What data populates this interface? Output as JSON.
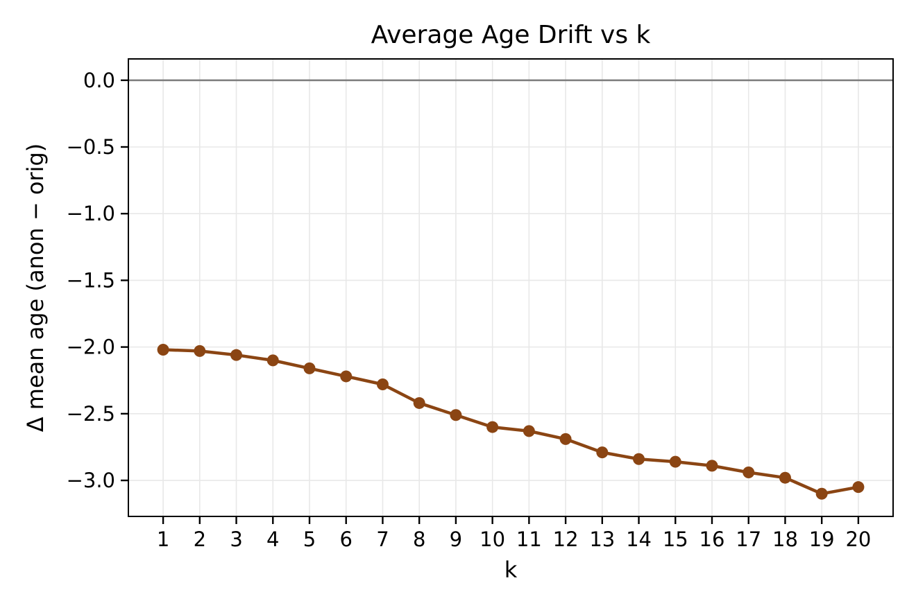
{
  "chart_data": {
    "type": "line",
    "title": "Average Age Drift vs k",
    "xlabel": "k",
    "ylabel": "Δ mean age (anon − orig)",
    "x": [
      1,
      2,
      3,
      4,
      5,
      6,
      7,
      8,
      9,
      10,
      11,
      12,
      13,
      14,
      15,
      16,
      17,
      18,
      19,
      20
    ],
    "y": [
      -2.02,
      -2.03,
      -2.06,
      -2.1,
      -2.16,
      -2.22,
      -2.28,
      -2.42,
      -2.51,
      -2.6,
      -2.63,
      -2.69,
      -2.79,
      -2.84,
      -2.86,
      -2.89,
      -2.94,
      -2.98,
      -3.1,
      -3.05
    ],
    "xticks": [
      1,
      2,
      3,
      4,
      5,
      6,
      7,
      8,
      9,
      10,
      11,
      12,
      13,
      14,
      15,
      16,
      17,
      18,
      19,
      20
    ],
    "xtick_labels": [
      "1",
      "2",
      "3",
      "4",
      "5",
      "6",
      "7",
      "8",
      "9",
      "10",
      "11",
      "12",
      "13",
      "14",
      "15",
      "16",
      "17",
      "18",
      "19",
      "20"
    ],
    "yticks": [
      0.0,
      -0.5,
      -1.0,
      -1.5,
      -2.0,
      -2.5,
      -3.0
    ],
    "ytick_labels": [
      "0.0",
      "−0.5",
      "−1.0",
      "−1.5",
      "−2.0",
      "−2.5",
      "−3.0"
    ],
    "xlim": [
      0.05,
      20.95
    ],
    "ylim": [
      -3.27,
      0.16
    ],
    "grid": true,
    "zero_line_y": 0,
    "legend": null,
    "colors": {
      "line": "#8B4513",
      "marker": "#8B4513",
      "zero_line": "#808080",
      "grid": "#e8e8e8",
      "spine": "#000000",
      "text": "#000000",
      "background": "#ffffff"
    },
    "style": {
      "line_width": 4.5,
      "marker_radius": 8.5,
      "marker_shape": "circle"
    }
  }
}
